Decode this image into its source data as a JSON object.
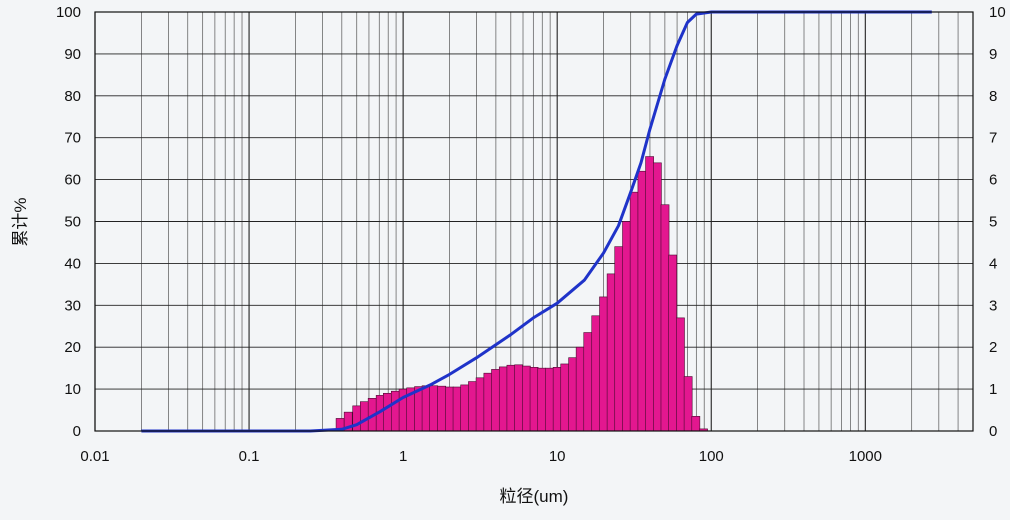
{
  "chart_data": {
    "type": "bar+line",
    "xlabel": "粒径(um)",
    "ylabel": "累计%",
    "x_scale": "log",
    "xlim": [
      0.01,
      5000
    ],
    "ylim_left": [
      0,
      100
    ],
    "ylim_right": [
      0,
      10
    ],
    "x_tick_labels": [
      {
        "value": 0.01,
        "label": "0.01"
      },
      {
        "value": 0.1,
        "label": "0.1"
      },
      {
        "value": 1,
        "label": "1"
      },
      {
        "value": 10,
        "label": "10"
      },
      {
        "value": 100,
        "label": "100"
      },
      {
        "value": 1000,
        "label": "1000"
      }
    ],
    "y_left_ticks": [
      0,
      10,
      20,
      30,
      40,
      50,
      60,
      70,
      80,
      90,
      100
    ],
    "y_right_tick_labels": [
      "0",
      "1",
      "2",
      "3",
      "4",
      "5",
      "6",
      "7",
      "8",
      "9",
      "10"
    ],
    "grid": true,
    "histogram": {
      "name": "",
      "color": "#e3178f",
      "bins_x": [
        0.39,
        0.44,
        0.5,
        0.56,
        0.63,
        0.71,
        0.79,
        0.89,
        1.0,
        1.12,
        1.26,
        1.41,
        1.58,
        1.78,
        2.0,
        2.24,
        2.51,
        2.82,
        3.16,
        3.55,
        3.98,
        4.47,
        5.01,
        5.62,
        6.31,
        7.08,
        7.94,
        8.91,
        10.0,
        11.2,
        12.6,
        14.1,
        15.8,
        17.8,
        20.0,
        22.4,
        25.1,
        28.2,
        31.6,
        35.5,
        39.8,
        44.7,
        50.1,
        56.2,
        63.1,
        70.8,
        79.4,
        89.1
      ],
      "values": [
        0.3,
        0.45,
        0.6,
        0.7,
        0.78,
        0.85,
        0.9,
        0.95,
        1.0,
        1.03,
        1.06,
        1.08,
        1.08,
        1.07,
        1.05,
        1.05,
        1.1,
        1.18,
        1.27,
        1.38,
        1.47,
        1.53,
        1.57,
        1.58,
        1.55,
        1.52,
        1.5,
        1.5,
        1.52,
        1.6,
        1.75,
        2.0,
        2.35,
        2.75,
        3.2,
        3.75,
        4.4,
        5.0,
        5.7,
        6.2,
        6.55,
        6.4,
        5.4,
        4.2,
        2.7,
        1.3,
        0.35,
        0.05
      ]
    },
    "cumulative": {
      "name": "",
      "color": "#1f33c9",
      "points": [
        {
          "x": 0.02,
          "y": 0
        },
        {
          "x": 0.1,
          "y": 0
        },
        {
          "x": 0.25,
          "y": 0
        },
        {
          "x": 0.4,
          "y": 0.4
        },
        {
          "x": 0.5,
          "y": 1.5
        },
        {
          "x": 0.7,
          "y": 4.5
        },
        {
          "x": 1.0,
          "y": 8
        },
        {
          "x": 1.5,
          "y": 11
        },
        {
          "x": 2.0,
          "y": 13.5
        },
        {
          "x": 3.0,
          "y": 17.5
        },
        {
          "x": 5.0,
          "y": 23
        },
        {
          "x": 7.0,
          "y": 27
        },
        {
          "x": 10.0,
          "y": 30.5
        },
        {
          "x": 15.0,
          "y": 36
        },
        {
          "x": 20.0,
          "y": 42.5
        },
        {
          "x": 25.0,
          "y": 49
        },
        {
          "x": 30.0,
          "y": 57
        },
        {
          "x": 35.0,
          "y": 64
        },
        {
          "x": 40.0,
          "y": 72
        },
        {
          "x": 50.0,
          "y": 84
        },
        {
          "x": 60.0,
          "y": 92
        },
        {
          "x": 70.0,
          "y": 97.5
        },
        {
          "x": 80.0,
          "y": 99.5
        },
        {
          "x": 100.0,
          "y": 100
        },
        {
          "x": 1000.0,
          "y": 100
        },
        {
          "x": 2700.0,
          "y": 100
        }
      ]
    }
  }
}
